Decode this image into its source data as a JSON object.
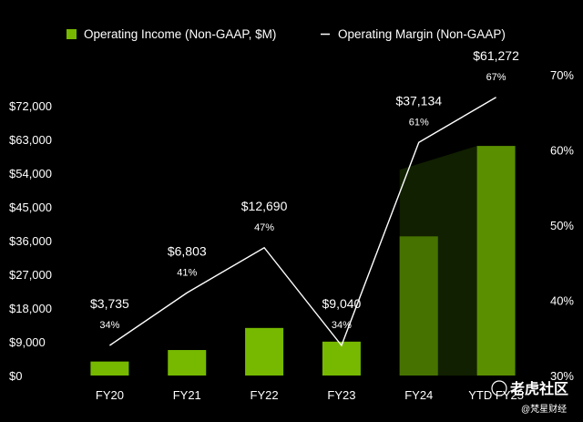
{
  "chart_data": {
    "type": "bar",
    "categories": [
      "FY20",
      "FY21",
      "FY22",
      "FY23",
      "FY24",
      "YTD FY25"
    ],
    "series": [
      {
        "name": "Operating Income (Non-GAAP, $M)",
        "type": "bar",
        "values": [
          3735,
          6803,
          12690,
          9040,
          37134,
          61272
        ],
        "value_labels": [
          "$3,735",
          "$6,803",
          "$12,690",
          "$9,040",
          "$37,134",
          "$61,272"
        ],
        "color": "#76b900"
      },
      {
        "name": "Operating Margin (Non-GAAP)",
        "type": "line",
        "values": [
          34,
          41,
          47,
          34,
          61,
          67
        ],
        "value_labels": [
          "34%",
          "41%",
          "47%",
          "34%",
          "61%",
          "67%"
        ],
        "color": "#ffffff"
      }
    ],
    "y_left": {
      "range": [
        0,
        72000
      ],
      "ticks": [
        0,
        9000,
        18000,
        27000,
        36000,
        45000,
        54000,
        63000,
        72000
      ],
      "tick_labels": [
        "$0",
        "$9,000",
        "$18,000",
        "$27,000",
        "$36,000",
        "$45,000",
        "$54,000",
        "$63,000",
        "$72,000"
      ]
    },
    "y_right": {
      "range": [
        30,
        70
      ],
      "ticks": [
        30,
        40,
        50,
        60,
        70
      ],
      "tick_labels": [
        "30%",
        "40%",
        "50%",
        "60%",
        "70%"
      ]
    },
    "grid": false,
    "legend_position": "top",
    "colors": {
      "background": "#000000",
      "bar": "#76b900",
      "bar_dark": "#5a8f00",
      "line": "#ffffff"
    }
  },
  "watermark": {
    "text": "老虎社区",
    "sub": "@梵星财经"
  }
}
